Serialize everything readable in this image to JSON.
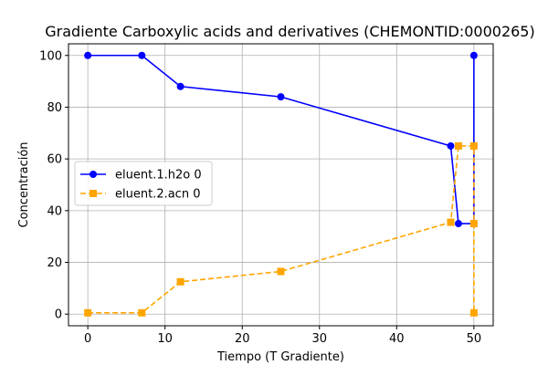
{
  "chart_data": {
    "type": "line",
    "title": "Gradiente Carboxylic acids and derivatives (CHEMONTID:0000265)",
    "xlabel": "Tiempo (T Gradiente)",
    "ylabel": "Concentración",
    "xlim": [
      -2.5,
      52.5
    ],
    "ylim": [
      -4.5,
      104.5
    ],
    "xticks": [
      0,
      10,
      20,
      30,
      40,
      50
    ],
    "yticks": [
      0,
      20,
      40,
      60,
      80,
      100
    ],
    "grid": true,
    "legend_position": "center-left",
    "series": [
      {
        "name": "eluent.1.h2o 0",
        "color": "#0000ff",
        "linestyle": "solid",
        "marker": "circle",
        "x": [
          0,
          7,
          12,
          25,
          47,
          48,
          50,
          50,
          50
        ],
        "y": [
          100,
          100,
          88,
          84,
          65,
          35,
          35,
          65,
          100
        ]
      },
      {
        "name": "eluent.2.acn 0",
        "color": "#ffa500",
        "linestyle": "dashed",
        "marker": "square",
        "x": [
          0,
          7,
          12,
          25,
          47,
          48,
          50,
          50,
          50
        ],
        "y": [
          0.5,
          0.5,
          12.5,
          16.5,
          35.5,
          65,
          65,
          35,
          0.5
        ]
      }
    ]
  }
}
